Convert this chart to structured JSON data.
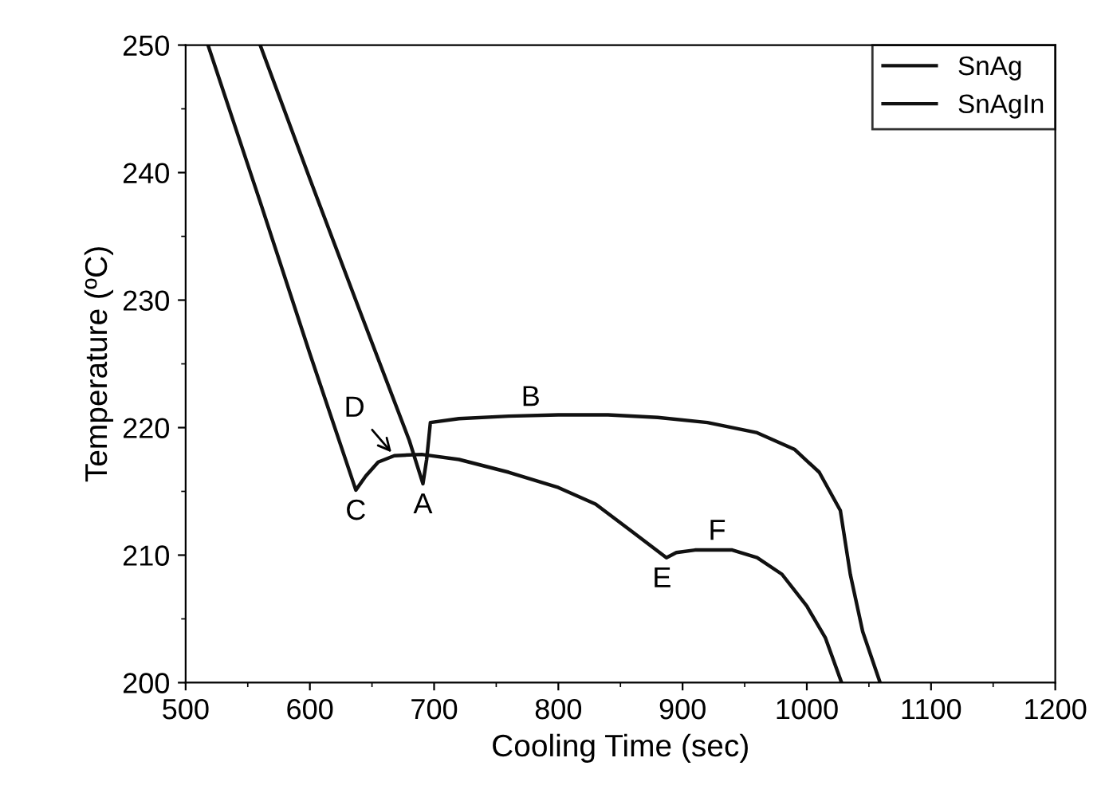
{
  "chart_data": {
    "type": "line",
    "xlabel": "Cooling Time (sec)",
    "ylabel": "Temperature (ºC)",
    "xlim": [
      500,
      1200
    ],
    "xticks": [
      500,
      600,
      700,
      800,
      900,
      1000,
      1100,
      1200
    ],
    "ylim": [
      200,
      250
    ],
    "yticks": [
      200,
      210,
      220,
      230,
      240,
      250
    ],
    "grid": false,
    "legend": "top right",
    "line_style": "solid",
    "marker": "none",
    "series": [
      {
        "name": "SnAg",
        "color": "#111111",
        "x": [
          560,
          600,
          640,
          680,
          691,
          694,
          697,
          720,
          760,
          800,
          840,
          880,
          920,
          960,
          990,
          1010,
          1027,
          1035,
          1045,
          1059
        ],
        "values": [
          250,
          239.5,
          229.2,
          219,
          215.6,
          217.5,
          220.4,
          220.7,
          220.9,
          221,
          221,
          220.8,
          220.4,
          219.6,
          218.3,
          216.5,
          213.5,
          208.5,
          204,
          200
        ]
      },
      {
        "name": "SnAgIn",
        "color": "#111111",
        "x": [
          518,
          560,
          600,
          637,
          645,
          655,
          668,
          690,
          720,
          760,
          800,
          830,
          860,
          887,
          895,
          910,
          940,
          960,
          980,
          1000,
          1015,
          1028
        ],
        "values": [
          250,
          237.7,
          225.8,
          215.1,
          216.2,
          217.3,
          217.8,
          217.9,
          217.5,
          216.5,
          215.3,
          214,
          211.8,
          209.8,
          210.2,
          210.4,
          210.4,
          209.8,
          208.5,
          206,
          203.5,
          200
        ]
      }
    ],
    "annotations": [
      {
        "text": "A",
        "x": 691,
        "y": 215.6
      },
      {
        "text": "B",
        "x": 760,
        "y": 220.9
      },
      {
        "text": "C",
        "x": 637,
        "y": 215.1
      },
      {
        "text": "D",
        "x": 668,
        "y": 217.8
      },
      {
        "text": "E",
        "x": 887,
        "y": 209.8
      },
      {
        "text": "F",
        "x": 910,
        "y": 210.4
      }
    ]
  }
}
